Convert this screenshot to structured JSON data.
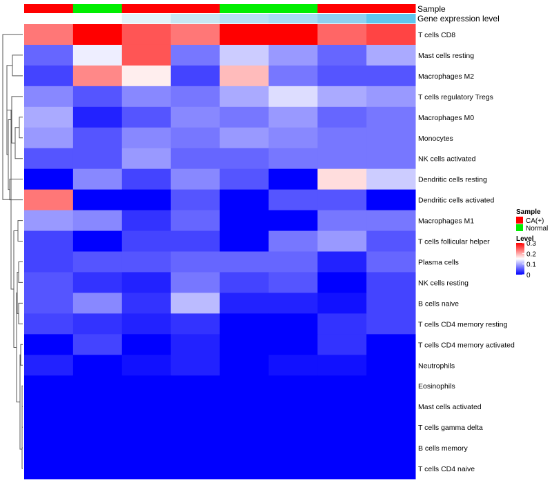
{
  "chart_data": {
    "type": "heatmap",
    "annotation_rows": [
      {
        "title": "Sample",
        "values": [
          "CA(+)",
          "Normal",
          "CA(+)",
          "CA(+)",
          "Normal",
          "Normal",
          "CA(+)",
          "CA(+)"
        ],
        "colors": [
          "#ff0000",
          "#00ee00",
          "#ff0000",
          "#ff0000",
          "#00ee00",
          "#00ee00",
          "#ff0000",
          "#ff0000"
        ]
      },
      {
        "title": "Gene expression level",
        "colors": [
          "#ffffff",
          "#ffffff",
          "#e4f2f9",
          "#c8e7f4",
          "#b6e0f4",
          "#a8dcf4",
          "#8ed1f1",
          "#5fc6ee"
        ]
      }
    ],
    "rows": [
      "T cells CD8",
      "Mast cells resting",
      "Macrophages M2",
      "T cells regulatory  Tregs",
      "Macrophages M0",
      "Monocytes",
      "NK cells activated",
      "Dendritic cells resting",
      "Dendritic cells activated",
      "Macrophages M1",
      "T cells follicular helper",
      "Plasma cells",
      "NK cells resting",
      "B cells naive",
      "T cells CD4 memory resting",
      "T cells CD4 memory activated",
      "Neutrophils",
      "Eosinophils",
      "Mast cells activated",
      "T cells gamma delta",
      "B cells memory",
      "T cells CD4 naive"
    ],
    "values": [
      [
        0.23,
        0.3,
        0.25,
        0.23,
        0.3,
        0.3,
        0.24,
        0.26
      ],
      [
        0.06,
        0.14,
        0.25,
        0.07,
        0.12,
        0.09,
        0.06,
        0.1
      ],
      [
        0.04,
        0.22,
        0.16,
        0.04,
        0.19,
        0.07,
        0.05,
        0.05
      ],
      [
        0.08,
        0.05,
        0.08,
        0.07,
        0.1,
        0.13,
        0.1,
        0.09
      ],
      [
        0.1,
        0.02,
        0.05,
        0.08,
        0.07,
        0.09,
        0.06,
        0.07
      ],
      [
        0.09,
        0.05,
        0.08,
        0.07,
        0.09,
        0.08,
        0.07,
        0.07
      ],
      [
        0.05,
        0.05,
        0.09,
        0.06,
        0.06,
        0.07,
        0.07,
        0.07
      ],
      [
        0.0,
        0.08,
        0.04,
        0.08,
        0.05,
        0.0,
        0.17,
        0.12
      ],
      [
        0.23,
        0.0,
        0.0,
        0.05,
        0.0,
        0.05,
        0.05,
        0.0
      ],
      [
        0.09,
        0.08,
        0.03,
        0.06,
        0.0,
        0.0,
        0.07,
        0.07
      ],
      [
        0.04,
        0.0,
        0.04,
        0.04,
        0.0,
        0.07,
        0.09,
        0.05
      ],
      [
        0.04,
        0.05,
        0.05,
        0.06,
        0.06,
        0.06,
        0.02,
        0.06
      ],
      [
        0.05,
        0.03,
        0.02,
        0.07,
        0.04,
        0.05,
        0.0,
        0.04
      ],
      [
        0.05,
        0.08,
        0.03,
        0.11,
        0.02,
        0.02,
        0.01,
        0.04
      ],
      [
        0.04,
        0.03,
        0.02,
        0.03,
        0.0,
        0.0,
        0.03,
        0.04
      ],
      [
        0.0,
        0.04,
        0.0,
        0.02,
        0.0,
        0.0,
        0.03,
        0.0
      ],
      [
        0.02,
        0.0,
        0.01,
        0.02,
        0.0,
        0.01,
        0.01,
        0.0
      ],
      [
        0.0,
        0.0,
        0.0,
        0.0,
        0.0,
        0.0,
        0.0,
        0.0
      ],
      [
        0.0,
        0.0,
        0.0,
        0.0,
        0.0,
        0.0,
        0.0,
        0.0
      ],
      [
        0.0,
        0.0,
        0.0,
        0.0,
        0.0,
        0.0,
        0.0,
        0.0
      ],
      [
        0.0,
        0.0,
        0.0,
        0.0,
        0.0,
        0.0,
        0.0,
        0.0
      ],
      [
        0.0,
        0.0,
        0.0,
        0.0,
        0.0,
        0.0,
        0.0,
        0.0
      ]
    ],
    "color_scale": {
      "min": 0,
      "mid": 0.15,
      "max": 0.3,
      "low_color": "#0000ff",
      "mid_color": "#ffffff",
      "high_color": "#ff0000"
    },
    "legend": {
      "sample": {
        "title": "Sample",
        "items": [
          {
            "label": "CA(+)",
            "color": "#ff0000"
          },
          {
            "label": "Normal",
            "color": "#00ee00"
          }
        ]
      },
      "level": {
        "title": "Level",
        "ticks": [
          0.3,
          0.2,
          0.1,
          0
        ],
        "tick_labels": [
          "0.3",
          "0.2",
          "0.1",
          "0"
        ]
      }
    },
    "row_dendrogram": true
  }
}
